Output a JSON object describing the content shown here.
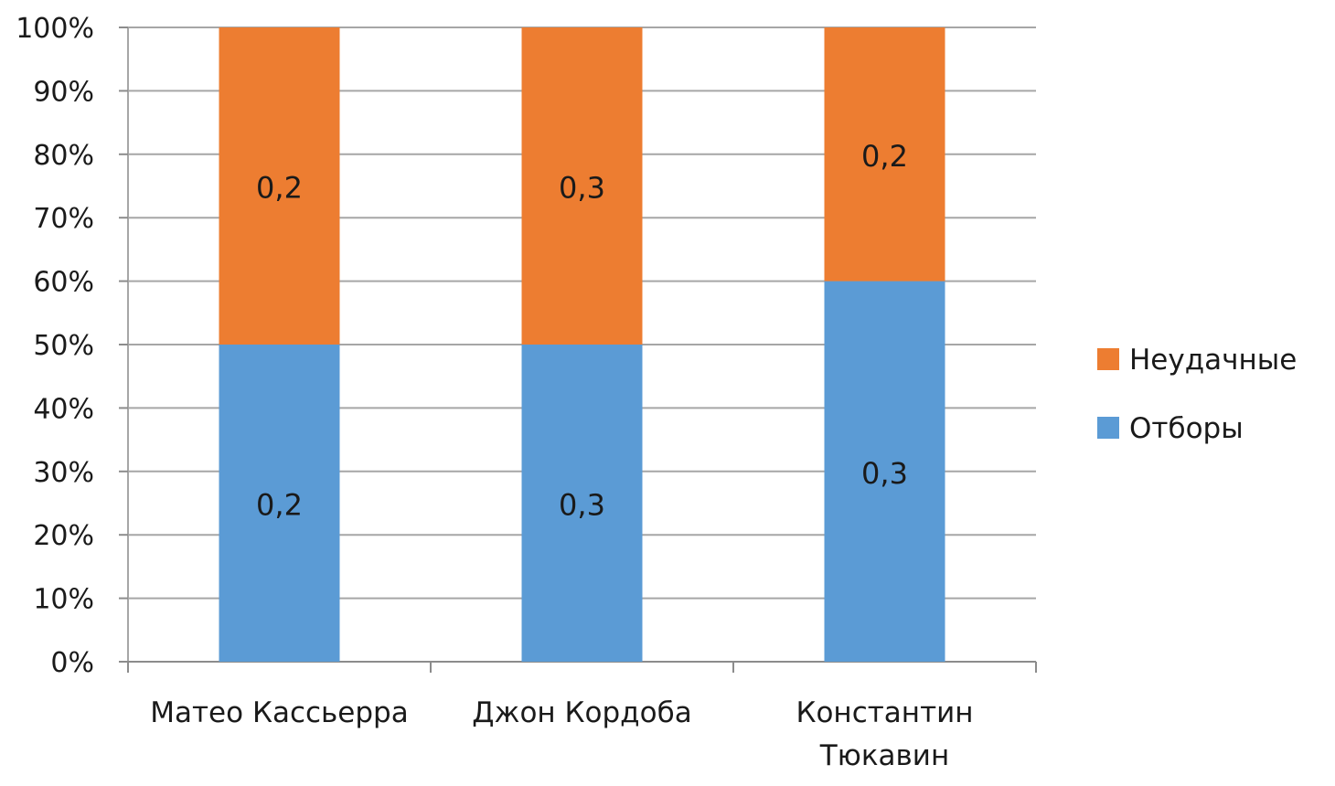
{
  "chart_data": {
    "type": "bar",
    "stacked": true,
    "normalized": true,
    "categories": [
      "Матео Кассьерра",
      "Джон Кордоба",
      "Константин Тюкавин"
    ],
    "category_label_lines": [
      [
        "Матео Кассьерра"
      ],
      [
        "Джон Кордоба"
      ],
      [
        "Константин",
        "Тюкавин"
      ]
    ],
    "series": [
      {
        "name": "Отборы",
        "values": [
          0.2,
          0.3,
          0.3
        ],
        "labels": [
          "0,2",
          "0,3",
          "0,3"
        ],
        "color": "#5b9bd5"
      },
      {
        "name": "Неудачные",
        "values": [
          0.2,
          0.3,
          0.2
        ],
        "labels": [
          "0,2",
          "0,3",
          "0,2"
        ],
        "color": "#ed7d31"
      }
    ],
    "ylim": [
      0,
      100
    ],
    "yticks": [
      "0%",
      "10%",
      "20%",
      "30%",
      "40%",
      "50%",
      "60%",
      "70%",
      "80%",
      "90%",
      "100%"
    ],
    "grid": true,
    "legend_position": "right",
    "legend_order": [
      "Неудачные",
      "Отборы"
    ],
    "title": "",
    "xlabel": "",
    "ylabel": ""
  }
}
